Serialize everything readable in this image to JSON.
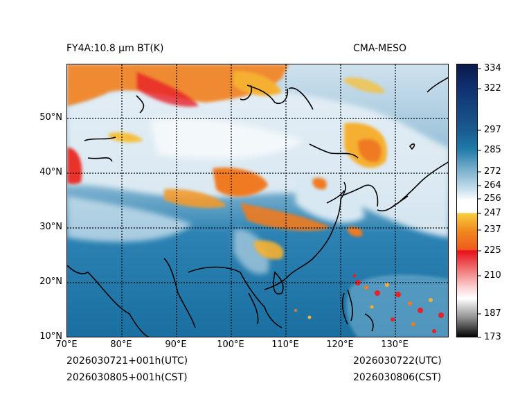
{
  "title_left": "FY4A:10.8 µm BT(K)",
  "title_right": "CMA-MESO",
  "lat_labels": [
    "50°N",
    "40°N",
    "30°N",
    "20°N",
    "10°N"
  ],
  "lon_labels": [
    "70°E",
    "80°E",
    "90°E",
    "100°E",
    "110°E",
    "120°E",
    "130°E"
  ],
  "colorbar": {
    "labels": [
      "334",
      "322",
      "297",
      "285",
      "272",
      "264",
      "256",
      "247",
      "237",
      "225",
      "210",
      "187",
      "173"
    ]
  },
  "footer": {
    "valid_utc": "2026030721+001h(UTC)",
    "valid_cst": "2026030805+001h(CST)",
    "init_utc": "2026030722(UTC)",
    "init_cst": "2026030806(CST)"
  },
  "colors": {
    "warm_blue": "#1a6fa0",
    "cloud_white": "#e8f1f7",
    "cold_orange": "#f07a20",
    "coldest_red": "#e8202a"
  }
}
